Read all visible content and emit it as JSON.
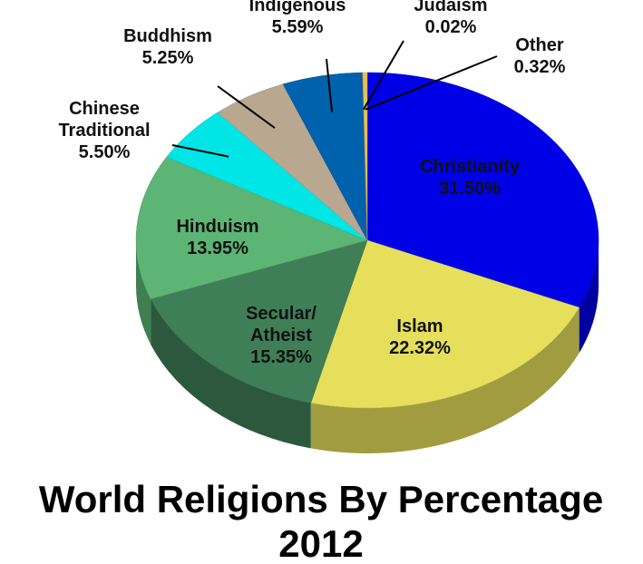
{
  "chart_data": {
    "type": "pie3d",
    "title": "World Religions By Percentage 2012",
    "categories": [
      "Christianity",
      "Islam",
      "Secular/Atheist",
      "Hinduism",
      "Chinese Traditional",
      "Buddhism",
      "Indigenous",
      "Judaism",
      "Other"
    ],
    "values": [
      31.5,
      22.32,
      15.35,
      13.95,
      5.5,
      5.25,
      5.59,
      0.02,
      0.32
    ],
    "value_labels": [
      "31.50%",
      "22.32%",
      "15.35%",
      "13.95%",
      "5.50%",
      "5.25%",
      "5.59%",
      "0.02%",
      "0.32%"
    ],
    "colors": [
      "#0000e6",
      "#e6df5c",
      "#3f7f57",
      "#5cb574",
      "#00e6e6",
      "#b9a78f",
      "#0062ad",
      "#e02020",
      "#e0c25a"
    ]
  }
}
